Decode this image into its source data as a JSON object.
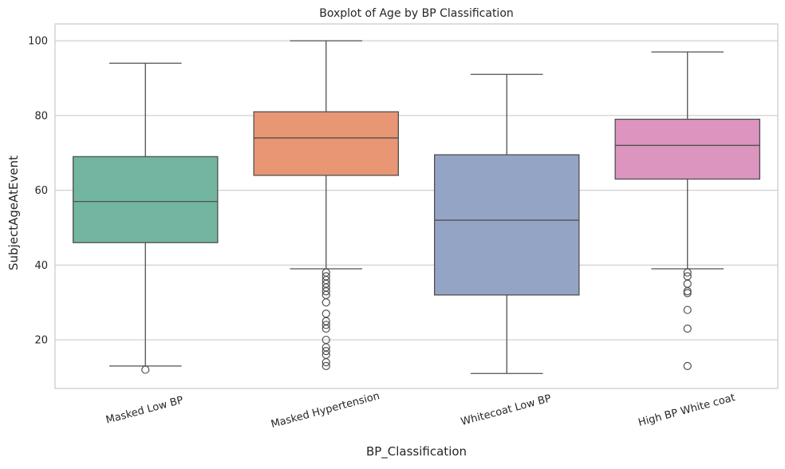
{
  "chart_data": {
    "type": "box",
    "title": "Boxplot of Age by BP Classification",
    "xlabel": "BP_Classification",
    "ylabel": "SubjectAgeAtEvent",
    "ylim": [
      7,
      104.5
    ],
    "yticks": [
      20,
      40,
      60,
      80,
      100
    ],
    "grid": true,
    "categories": [
      "Masked Low BP",
      "Masked Hypertension",
      "Whitecoat Low BP",
      "High BP White coat"
    ],
    "boxes": [
      {
        "whisker_low": 13,
        "q1": 46,
        "median": 57,
        "q3": 69,
        "whisker_high": 94,
        "outliers": [
          12
        ],
        "color": "#72b5a0"
      },
      {
        "whisker_low": 39,
        "q1": 64,
        "median": 74,
        "q3": 81,
        "whisker_high": 100,
        "outliers": [
          38,
          37,
          36,
          35,
          34,
          33,
          32,
          30,
          27,
          25,
          24,
          23,
          20,
          18,
          17,
          16,
          14,
          13
        ],
        "color": "#e89674"
      },
      {
        "whisker_low": 11,
        "q1": 32,
        "median": 52,
        "q3": 69.5,
        "whisker_high": 91,
        "outliers": [],
        "color": "#94a4c4"
      },
      {
        "whisker_low": 39,
        "q1": 63,
        "median": 72,
        "q3": 79,
        "whisker_high": 97,
        "outliers": [
          38,
          37,
          35,
          33,
          32.5,
          28,
          23,
          13
        ],
        "color": "#dc95bf"
      }
    ],
    "colors": {
      "frame": "#cccccc",
      "grid": "#cccccc",
      "line": "#505050"
    }
  }
}
